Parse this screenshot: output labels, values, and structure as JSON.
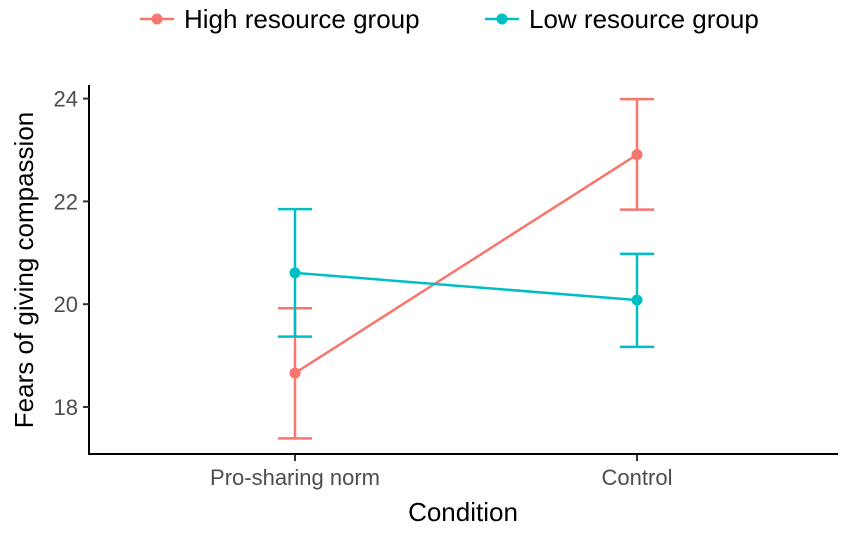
{
  "chart_data": {
    "type": "line",
    "title": "",
    "xlabel": "Condition",
    "ylabel": "Fears of giving compassion",
    "categories": [
      "Pro-sharing norm",
      "Control"
    ],
    "yticks": [
      18,
      20,
      22,
      24
    ],
    "ylim": [
      17.1,
      24.3
    ],
    "grid": false,
    "legend_position": "top",
    "series": [
      {
        "name": "High resource group",
        "color": "#F8766D",
        "values": [
          18.66,
          22.91
        ],
        "lower": [
          17.39,
          21.84
        ],
        "upper": [
          19.92,
          23.99
        ]
      },
      {
        "name": "Low resource group",
        "color": "#00BFC4",
        "values": [
          20.61,
          20.08
        ],
        "lower": [
          19.37,
          19.17
        ],
        "upper": [
          21.85,
          20.98
        ]
      }
    ]
  }
}
